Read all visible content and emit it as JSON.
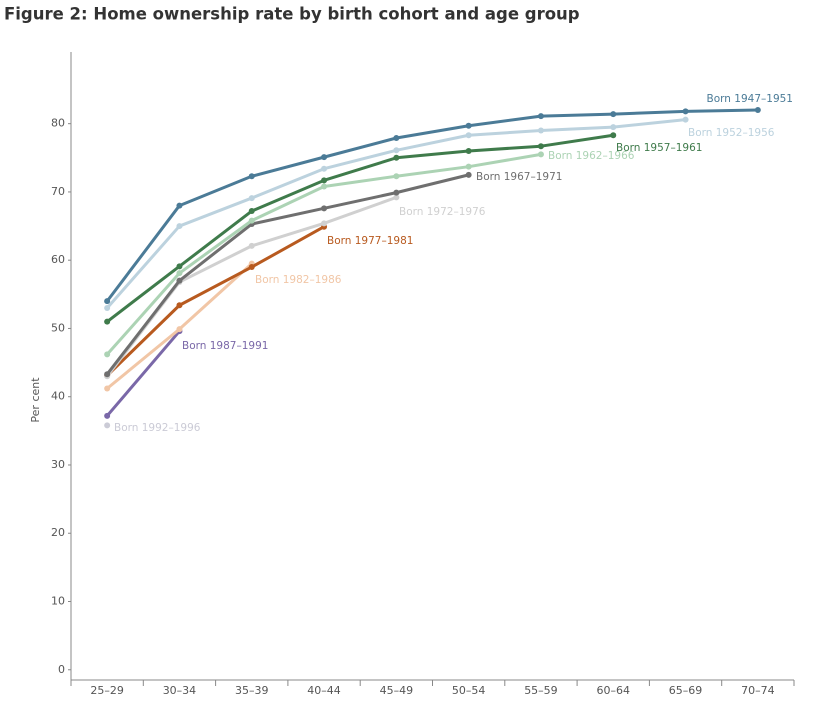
{
  "chart_data": {
    "type": "line",
    "title": "Figure 2: Home ownership rate by birth cohort and age group",
    "y_label": "Per cent",
    "categories": [
      "25–29",
      "30–34",
      "35–39",
      "40–44",
      "45–49",
      "50–54",
      "55–59",
      "60–64",
      "65–69",
      "70–74"
    ],
    "ylim": [
      -1.5,
      90.5
    ],
    "yticks": [
      0,
      10,
      20,
      30,
      40,
      50,
      60,
      70,
      80
    ],
    "grid": false,
    "series": [
      {
        "name": "Born 1947–1951",
        "color": "#4b7b97",
        "values": [
          54.0,
          68.0,
          72.3,
          75.1,
          77.9,
          79.7,
          81.1,
          81.4,
          81.8,
          82.0
        ]
      },
      {
        "name": "Born 1952–1956",
        "color": "#bcd2de",
        "values": [
          53.0,
          65.0,
          69.1,
          73.4,
          76.1,
          78.3,
          79.0,
          79.5,
          80.6,
          null
        ]
      },
      {
        "name": "Born 1957–1961",
        "color": "#3f7b4b",
        "values": [
          51.0,
          59.1,
          67.2,
          71.7,
          75.0,
          76.0,
          76.7,
          78.3,
          null,
          null
        ]
      },
      {
        "name": "Born 1962–1966",
        "color": "#acd3b4",
        "values": [
          46.2,
          58.1,
          65.8,
          70.8,
          72.3,
          73.7,
          75.5,
          null,
          null,
          null
        ]
      },
      {
        "name": "Born 1967–1971",
        "color": "#6f6f6f",
        "values": [
          43.3,
          57.0,
          65.3,
          67.6,
          69.9,
          72.5,
          null,
          null,
          null,
          null
        ]
      },
      {
        "name": "Born 1972–1976",
        "color": "#d0d0d0",
        "values": [
          43.0,
          56.8,
          62.1,
          65.4,
          69.2,
          null,
          null,
          null,
          null,
          null
        ]
      },
      {
        "name": "Born 1977–1981",
        "color": "#b85a1f",
        "values": [
          43.1,
          53.4,
          59.0,
          64.9,
          null,
          null,
          null,
          null,
          null,
          null
        ]
      },
      {
        "name": "Born 1982–1986",
        "color": "#f1c6a6",
        "values": [
          41.2,
          49.9,
          59.5,
          null,
          null,
          null,
          null,
          null,
          null,
          null
        ]
      },
      {
        "name": "Born 1987–1991",
        "color": "#7a68a8",
        "values": [
          37.2,
          49.6,
          null,
          null,
          null,
          null,
          null,
          null,
          null,
          null
        ]
      },
      {
        "name": "Born 1992–1996",
        "color": "#cbcbd6",
        "values": [
          35.8,
          null,
          null,
          null,
          null,
          null,
          null,
          null,
          null,
          null
        ]
      }
    ]
  }
}
